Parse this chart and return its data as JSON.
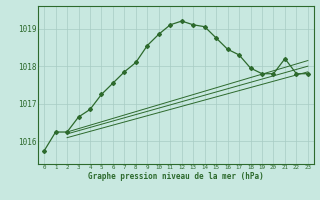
{
  "hours": [
    0,
    1,
    2,
    3,
    4,
    5,
    6,
    7,
    8,
    9,
    10,
    11,
    12,
    13,
    14,
    15,
    16,
    17,
    18,
    19,
    20,
    21,
    22,
    23
  ],
  "pressure_main": [
    1015.75,
    1016.25,
    1016.25,
    1016.65,
    1016.85,
    1017.25,
    1017.55,
    1017.85,
    1018.1,
    1018.55,
    1018.85,
    1019.1,
    1019.2,
    1019.1,
    1019.05,
    1018.75,
    1018.45,
    1018.3,
    1017.95,
    1017.8,
    1017.8,
    1018.2,
    1017.8,
    1017.8
  ],
  "line2_x": [
    2,
    23
  ],
  "line2_y": [
    1016.25,
    1018.15
  ],
  "line3_x": [
    2,
    23
  ],
  "line3_y": [
    1016.2,
    1018.0
  ],
  "line4_x": [
    2,
    23
  ],
  "line4_y": [
    1016.1,
    1017.85
  ],
  "line_color": "#2d6a2d",
  "bg_color": "#c8e8e0",
  "grid_color": "#a8ccc4",
  "xlabel": "Graphe pression niveau de la mer (hPa)",
  "yticks": [
    1016,
    1017,
    1018,
    1019
  ],
  "ylim": [
    1015.4,
    1019.6
  ],
  "xlim": [
    -0.5,
    23.5
  ]
}
